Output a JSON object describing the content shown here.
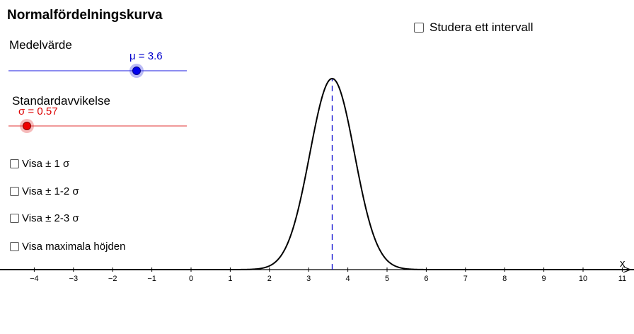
{
  "title": "Normalfördelningskurva",
  "interval_checkbox": {
    "label": "Studera ett intervall",
    "checked": false
  },
  "mean_slider": {
    "label": "Medelvärde",
    "value_text": "μ = 3.6",
    "value": 3.6,
    "color": "#0000cc",
    "track_color": "#8c8cf0"
  },
  "sd_slider": {
    "label": "Standardavvikelse",
    "value_text": "σ = 0.57",
    "value": 0.57,
    "color": "#dd0000",
    "track_color": "#f09a9a"
  },
  "checkboxes": [
    {
      "label": "Visa ± 1 σ",
      "checked": false
    },
    {
      "label": "Visa ± 1-2 σ",
      "checked": false
    },
    {
      "label": "Visa ± 2-3 σ",
      "checked": false
    },
    {
      "label": "Visa maximala höjden",
      "checked": false
    }
  ],
  "chart_data": {
    "type": "line",
    "function": "normal_density",
    "mu": 3.6,
    "sigma": 0.57,
    "x_axis_label": "x",
    "xlim": [
      -5,
      11.3
    ],
    "x_ticks": [
      "−4",
      "−3",
      "−2",
      "−1",
      "0",
      "1",
      "2",
      "3",
      "4",
      "5",
      "6",
      "7",
      "8",
      "9",
      "10",
      "11"
    ],
    "mean_line": {
      "x": 3.6,
      "style": "dashed",
      "color": "#0000cc"
    },
    "curve_color": "#000000"
  }
}
